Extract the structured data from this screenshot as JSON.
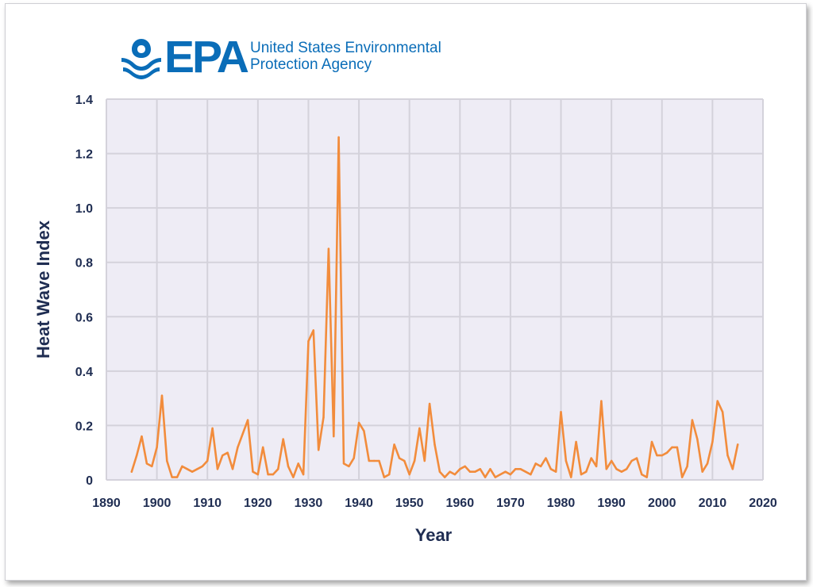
{
  "logo": {
    "wordmark": "EPA",
    "agency_line1": "United States Environmental",
    "agency_line2": "Protection Agency",
    "brand_color": "#0a6db8",
    "icon": "epa-flower-icon"
  },
  "chart_data": {
    "type": "line",
    "xlabel": "Year",
    "ylabel": "Heat Wave Index",
    "xlim": [
      1890,
      2020
    ],
    "ylim": [
      0,
      1.4
    ],
    "x_ticks": [
      1890,
      1900,
      1910,
      1920,
      1930,
      1940,
      1950,
      1960,
      1970,
      1980,
      1990,
      2000,
      2010,
      2020
    ],
    "y_ticks": [
      0,
      0.2,
      0.4,
      0.6,
      0.8,
      1.0,
      1.2,
      1.4
    ],
    "y_tick_labels": [
      "0",
      "0.2",
      "0.4",
      "0.6",
      "0.8",
      "1.0",
      "1.2",
      "1.4"
    ],
    "grid": true,
    "plot_background": "#eeecf5",
    "grid_color": "#d4d2db",
    "line_color": "#f28c3c",
    "series": [
      {
        "x": [
          1895,
          1896,
          1897,
          1898,
          1899,
          1900,
          1901,
          1902,
          1903,
          1904,
          1905,
          1906,
          1907,
          1908,
          1909,
          1910,
          1911,
          1912,
          1913,
          1914,
          1915,
          1916,
          1917,
          1918,
          1919,
          1920,
          1921,
          1922,
          1923,
          1924,
          1925,
          1926,
          1927,
          1928,
          1929,
          1930,
          1931,
          1932,
          1933,
          1934,
          1935,
          1936,
          1937,
          1938,
          1939,
          1940,
          1941,
          1942,
          1943,
          1944,
          1945,
          1946,
          1947,
          1948,
          1949,
          1950,
          1951,
          1952,
          1953,
          1954,
          1955,
          1956,
          1957,
          1958,
          1959,
          1960,
          1961,
          1962,
          1963,
          1964,
          1965,
          1966,
          1967,
          1968,
          1969,
          1970,
          1971,
          1972,
          1973,
          1974,
          1975,
          1976,
          1977,
          1978,
          1979,
          1980,
          1981,
          1982,
          1983,
          1984,
          1985,
          1986,
          1987,
          1988,
          1989,
          1990,
          1991,
          1992,
          1993,
          1994,
          1995,
          1996,
          1997,
          1998,
          1999,
          2000,
          2001,
          2002,
          2003,
          2004,
          2005,
          2006,
          2007,
          2008,
          2009,
          2010,
          2011,
          2012,
          2013,
          2014,
          2015
        ],
        "y": [
          0.03,
          0.09,
          0.16,
          0.06,
          0.05,
          0.12,
          0.31,
          0.07,
          0.01,
          0.01,
          0.05,
          0.04,
          0.03,
          0.04,
          0.05,
          0.07,
          0.19,
          0.04,
          0.09,
          0.1,
          0.04,
          0.12,
          0.17,
          0.22,
          0.03,
          0.02,
          0.12,
          0.02,
          0.02,
          0.04,
          0.15,
          0.05,
          0.01,
          0.06,
          0.02,
          0.51,
          0.55,
          0.11,
          0.23,
          0.85,
          0.16,
          1.26,
          0.06,
          0.05,
          0.08,
          0.21,
          0.18,
          0.07,
          0.07,
          0.07,
          0.01,
          0.02,
          0.13,
          0.08,
          0.07,
          0.02,
          0.07,
          0.19,
          0.07,
          0.28,
          0.13,
          0.03,
          0.01,
          0.03,
          0.02,
          0.04,
          0.05,
          0.03,
          0.03,
          0.04,
          0.01,
          0.04,
          0.01,
          0.02,
          0.03,
          0.02,
          0.04,
          0.04,
          0.03,
          0.02,
          0.06,
          0.05,
          0.08,
          0.04,
          0.03,
          0.25,
          0.07,
          0.01,
          0.14,
          0.02,
          0.03,
          0.08,
          0.05,
          0.29,
          0.04,
          0.07,
          0.04,
          0.03,
          0.04,
          0.07,
          0.08,
          0.02,
          0.01,
          0.14,
          0.09,
          0.09,
          0.1,
          0.12,
          0.12,
          0.01,
          0.05,
          0.22,
          0.15,
          0.03,
          0.06,
          0.14,
          0.29,
          0.25,
          0.09,
          0.04,
          0.13
        ]
      }
    ]
  }
}
